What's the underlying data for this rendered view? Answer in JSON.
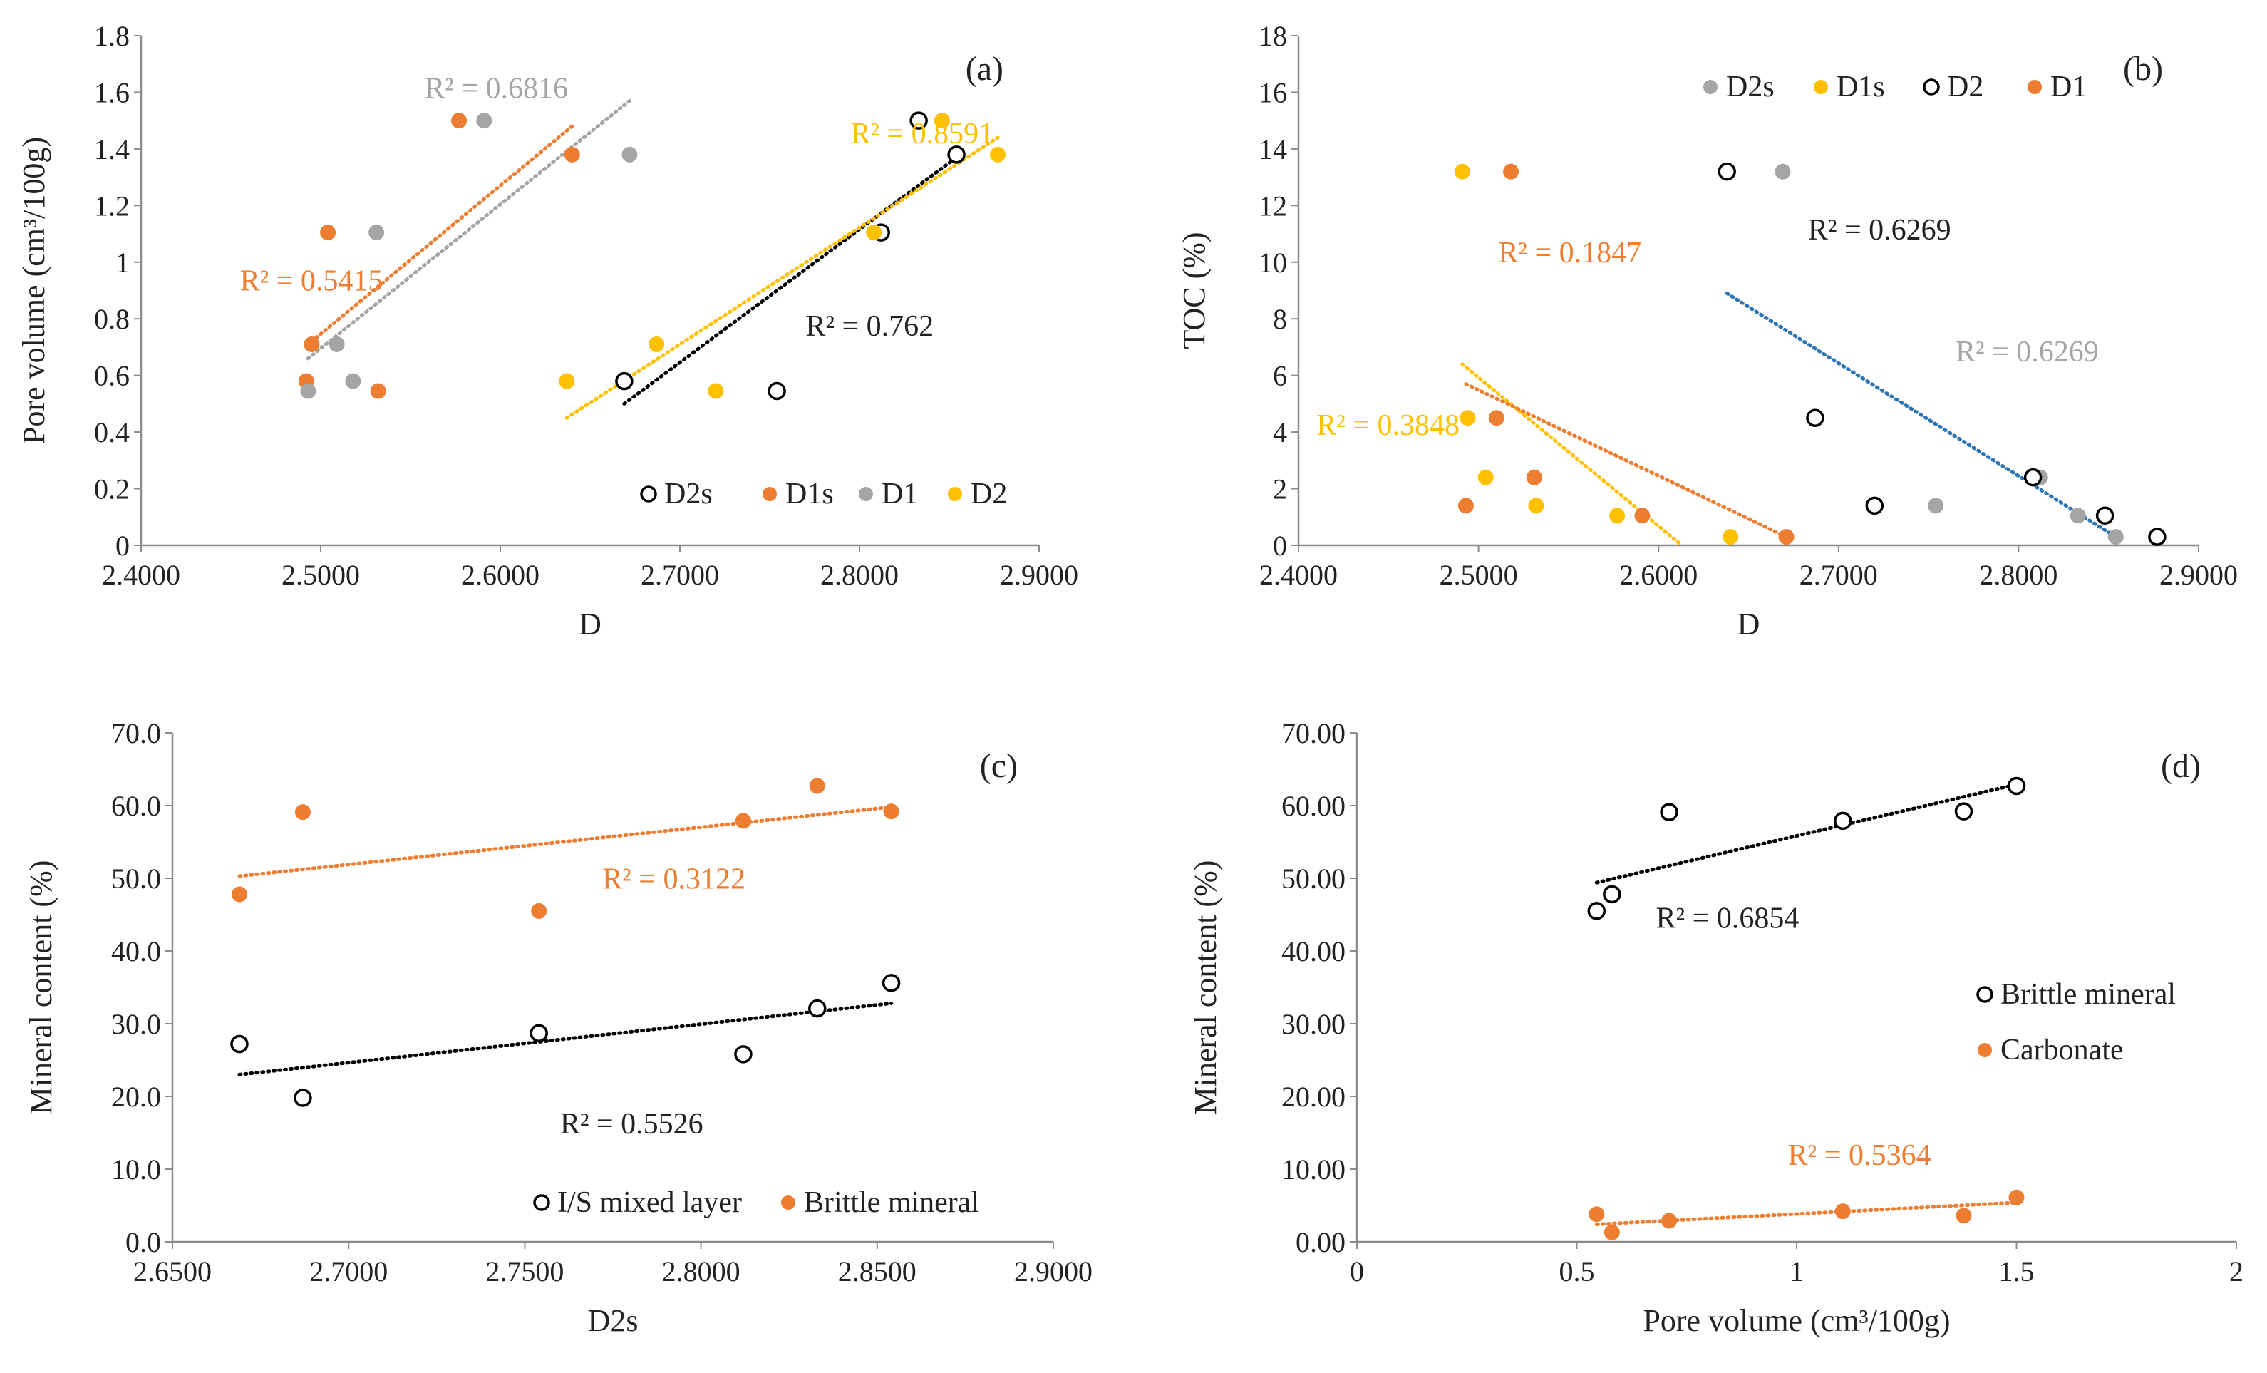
{
  "chart_data": [
    {
      "id": "a",
      "type": "scatter",
      "panel_label": "(a)",
      "xlabel": "D",
      "ylabel": "Pore volume (cm³/100g)",
      "xlim": [
        2.4,
        2.9
      ],
      "ylim": [
        0,
        1.8
      ],
      "xticks": [
        2.4,
        2.5,
        2.6,
        2.7,
        2.8,
        2.9
      ],
      "xtick_labels": [
        "2.4000",
        "2.5000",
        "2.6000",
        "2.7000",
        "2.8000",
        "2.9000"
      ],
      "yticks": [
        0,
        0.2,
        0.4,
        0.6,
        0.8,
        1.0,
        1.2,
        1.4,
        1.6,
        1.8
      ],
      "ytick_labels": [
        "0",
        "0.2",
        "0.4",
        "0.6",
        "0.8",
        "1",
        "1.2",
        "1.4",
        "1.6",
        "1.8"
      ],
      "legend_position": "bottom-right",
      "series": [
        {
          "name": "D2s",
          "marker": "open",
          "color": "#000000",
          "x": [
            2.669,
            2.754,
            2.812,
            2.833,
            2.854
          ],
          "y": [
            0.58,
            0.545,
            1.105,
            1.5,
            1.38
          ],
          "trend": {
            "x": [
              2.669,
              2.854
            ],
            "y": [
              0.5,
              1.37
            ]
          },
          "r2": "R² = 0.762",
          "r2_at": [
            2.77,
            0.74
          ]
        },
        {
          "name": "D1s",
          "marker": "filled",
          "color": "#ED7D31",
          "x": [
            2.492,
            2.495,
            2.504,
            2.532,
            2.577,
            2.64
          ],
          "y": [
            0.58,
            0.71,
            1.105,
            0.545,
            1.5,
            1.38
          ],
          "trend": {
            "x": [
              2.495,
              2.64
            ],
            "y": [
              0.72,
              1.48
            ]
          },
          "r2": "R² = 0.5415",
          "r2_at": [
            2.455,
            0.9
          ]
        },
        {
          "name": "D1",
          "marker": "filled",
          "color": "#A5A5A5",
          "x": [
            2.493,
            2.509,
            2.518,
            2.531,
            2.591,
            2.672
          ],
          "y": [
            0.545,
            0.71,
            0.58,
            1.105,
            1.5,
            1.38
          ],
          "trend": {
            "x": [
              2.493,
              2.672
            ],
            "y": [
              0.66,
              1.57
            ]
          },
          "r2": "R² = 0.6816",
          "r2_at": [
            2.558,
            1.58
          ]
        },
        {
          "name": "D2",
          "marker": "filled",
          "color": "#FFC000",
          "x": [
            2.637,
            2.687,
            2.72,
            2.808,
            2.846,
            2.877
          ],
          "y": [
            0.58,
            0.71,
            0.545,
            1.105,
            1.5,
            1.38
          ],
          "trend": {
            "x": [
              2.637,
              2.877
            ],
            "y": [
              0.45,
              1.44
            ]
          },
          "r2": "R² = 0.8591",
          "r2_at": [
            2.795,
            1.42
          ]
        }
      ]
    },
    {
      "id": "b",
      "type": "scatter",
      "panel_label": "(b)",
      "xlabel": "D",
      "ylabel": "TOC (%)",
      "xlim": [
        2.4,
        2.9
      ],
      "ylim": [
        0,
        18
      ],
      "xticks": [
        2.4,
        2.5,
        2.6,
        2.7,
        2.8,
        2.9
      ],
      "xtick_labels": [
        "2.4000",
        "2.5000",
        "2.6000",
        "2.7000",
        "2.8000",
        "2.9000"
      ],
      "yticks": [
        0,
        2,
        4,
        6,
        8,
        10,
        12,
        14,
        16,
        18
      ],
      "ytick_labels": [
        "0",
        "2",
        "4",
        "6",
        "8",
        "10",
        "12",
        "14",
        "16",
        "18"
      ],
      "legend_position": "top-left",
      "series": [
        {
          "name": "D2s",
          "marker": "filled",
          "color": "#A5A5A5",
          "x": [
            2.669,
            2.687,
            2.754,
            2.812,
            2.833,
            2.854
          ],
          "y": [
            13.2,
            4.5,
            1.4,
            2.4,
            1.05,
            0.3
          ],
          "trend": null,
          "r2": "R² = 0.6269",
          "r2_at": [
            2.765,
            6.5
          ]
        },
        {
          "name": "D1s",
          "marker": "filled",
          "color": "#FFC000",
          "x": [
            2.491,
            2.494,
            2.504,
            2.532,
            2.577,
            2.64
          ],
          "y": [
            13.2,
            4.5,
            2.4,
            1.4,
            1.05,
            0.3
          ],
          "trend": {
            "x": [
              2.491,
              2.613
            ],
            "y": [
              6.4,
              0.0
            ]
          },
          "r2": "R² = 0.3848",
          "r2_at": [
            2.41,
            3.9
          ]
        },
        {
          "name": "D2",
          "marker": "open",
          "color": "#000000",
          "x": [
            2.638,
            2.687,
            2.72,
            2.808,
            2.848,
            2.877
          ],
          "y": [
            13.2,
            4.5,
            1.4,
            2.4,
            1.05,
            0.3
          ],
          "trend": {
            "x": [
              2.638,
              2.854
            ],
            "y": [
              8.9,
              0.3
            ]
          },
          "trend_color": "#2E75B6",
          "r2": "R² = 0.6269",
          "r2_at": [
            2.683,
            10.8
          ]
        },
        {
          "name": "D1",
          "marker": "filled",
          "color": "#ED7D31",
          "x": [
            2.493,
            2.51,
            2.518,
            2.531,
            2.591,
            2.671
          ],
          "y": [
            1.4,
            4.5,
            13.2,
            2.4,
            1.05,
            0.3
          ],
          "trend": {
            "x": [
              2.493,
              2.671
            ],
            "y": [
              5.7,
              0.3
            ]
          },
          "r2": "R² = 0.1847",
          "r2_at": [
            2.511,
            10.0
          ]
        }
      ]
    },
    {
      "id": "c",
      "type": "scatter",
      "panel_label": "(c)",
      "xlabel": "D2s",
      "ylabel": "Mineral content (%)",
      "xlim": [
        2.65,
        2.9
      ],
      "ylim": [
        0,
        70
      ],
      "xticks": [
        2.65,
        2.7,
        2.75,
        2.8,
        2.85,
        2.9
      ],
      "xtick_labels": [
        "2.6500",
        "2.7000",
        "2.7500",
        "2.8000",
        "2.8500",
        "2.9000"
      ],
      "yticks": [
        0,
        10,
        20,
        30,
        40,
        50,
        60,
        70
      ],
      "ytick_labels": [
        "0.0",
        "10.0",
        "20.0",
        "30.0",
        "40.0",
        "50.0",
        "60.0",
        "70.0"
      ],
      "legend_position": "bottom-right",
      "series": [
        {
          "name": "I/S mixed layer",
          "marker": "open",
          "color": "#000000",
          "x": [
            2.669,
            2.687,
            2.754,
            2.812,
            2.833,
            2.854
          ],
          "y": [
            27.2,
            19.8,
            28.7,
            25.8,
            32.1,
            35.6
          ],
          "trend": {
            "x": [
              2.669,
              2.854
            ],
            "y": [
              23.0,
              32.8
            ]
          },
          "r2": "R² = 0.5526",
          "r2_at": [
            2.76,
            14.9
          ]
        },
        {
          "name": "Brittle mineral",
          "marker": "filled",
          "color": "#ED7D31",
          "x": [
            2.669,
            2.687,
            2.754,
            2.812,
            2.833,
            2.854
          ],
          "y": [
            47.8,
            59.1,
            45.5,
            57.9,
            62.7,
            59.2
          ],
          "trend": {
            "x": [
              2.669,
              2.854
            ],
            "y": [
              50.3,
              59.8
            ]
          },
          "r2": "R² = 0.3122",
          "r2_at": [
            2.772,
            48.6
          ]
        }
      ]
    },
    {
      "id": "d",
      "type": "scatter",
      "panel_label": "(d)",
      "xlabel": "Pore volume (cm³/100g)",
      "ylabel": "Mineral content (%)",
      "xlim": [
        0,
        2
      ],
      "ylim": [
        0,
        70
      ],
      "xticks": [
        0,
        0.5,
        1,
        1.5,
        2
      ],
      "xtick_labels": [
        "0",
        "0.5",
        "1",
        "1.5",
        "2"
      ],
      "yticks": [
        0,
        10,
        20,
        30,
        40,
        50,
        60,
        70
      ],
      "ytick_labels": [
        "0.00",
        "10.00",
        "20.00",
        "30.00",
        "40.00",
        "50.00",
        "60.00",
        "70.00"
      ],
      "legend_position": "right",
      "series": [
        {
          "name": "Brittle mineral",
          "marker": "open",
          "color": "#000000",
          "x": [
            0.545,
            0.58,
            0.71,
            1.105,
            1.38,
            1.5
          ],
          "y": [
            45.5,
            47.8,
            59.1,
            57.9,
            59.2,
            62.7
          ],
          "trend": {
            "x": [
              0.545,
              1.5
            ],
            "y": [
              49.4,
              62.9
            ]
          },
          "r2": "R² = 0.6854",
          "r2_at": [
            0.68,
            43.2
          ]
        },
        {
          "name": "Carbonate",
          "marker": "filled",
          "color": "#ED7D31",
          "x": [
            0.545,
            0.58,
            0.71,
            1.105,
            1.38,
            1.5
          ],
          "y": [
            3.8,
            1.3,
            2.9,
            4.2,
            3.6,
            6.1
          ],
          "trend": {
            "x": [
              0.545,
              1.5
            ],
            "y": [
              2.4,
              5.4
            ]
          },
          "r2": "R² = 0.5364",
          "r2_at": [
            0.98,
            10.6
          ]
        }
      ]
    }
  ]
}
